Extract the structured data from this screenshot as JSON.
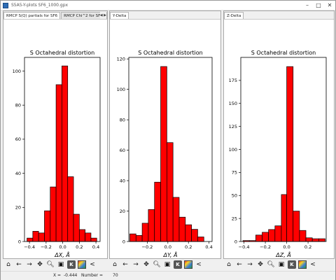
{
  "window": {
    "title": "S5A5-Y-plots SF6_1000.gpx"
  },
  "panes": [
    {
      "tabs": [
        "RMCP S(Q) partials for SF6",
        "RMCP Chi^2 for SF6",
        "Bo"
      ],
      "active_tab": 0,
      "chart_data": {
        "type": "bar",
        "title": "S Octahedral distortion",
        "xlabel": "ΔX, Å",
        "ylabel": "",
        "bin_edges": [
          -0.43,
          -0.36,
          -0.29,
          -0.22,
          -0.15,
          -0.08,
          -0.01,
          0.06,
          0.13,
          0.2,
          0.27,
          0.34,
          0.41
        ],
        "values": [
          2,
          6,
          5,
          18,
          32,
          92,
          103,
          38,
          16,
          7,
          5,
          2
        ],
        "xlim": [
          -0.46,
          0.45
        ],
        "ylim": [
          0,
          108
        ],
        "xticks": [
          -0.4,
          -0.2,
          0.0,
          0.2,
          0.4
        ],
        "xtick_labels": [
          "−0.4",
          "−0.2",
          "0.0",
          "0.2",
          "0.4"
        ],
        "yticks": [
          0,
          20,
          40,
          60,
          80,
          100
        ],
        "ytick_labels": [
          "0",
          "20",
          "40",
          "60",
          "80",
          "100"
        ],
        "bar_color": "#ff0000"
      }
    },
    {
      "tabs": [
        "Y-Delta"
      ],
      "active_tab": 0,
      "chart_data": {
        "type": "bar",
        "title": "S Octahedral distortion",
        "xlabel": "ΔY, Å",
        "ylabel": "",
        "bin_edges": [
          -0.37,
          -0.31,
          -0.25,
          -0.19,
          -0.13,
          -0.07,
          -0.01,
          0.05,
          0.11,
          0.17,
          0.23,
          0.29,
          0.35,
          0.41
        ],
        "values": [
          5,
          4,
          12,
          21,
          39,
          115,
          65,
          29,
          16,
          11,
          8,
          3,
          0
        ],
        "xlim": [
          -0.38,
          0.43
        ],
        "ylim": [
          0,
          121
        ],
        "xticks": [
          -0.2,
          0.0,
          0.2,
          0.4
        ],
        "xtick_labels": [
          "−0.2",
          "0.0",
          "0.2",
          "0.4"
        ],
        "yticks": [
          0,
          20,
          40,
          60,
          80,
          100,
          120
        ],
        "ytick_labels": [
          "0",
          "20",
          "40",
          "60",
          "80",
          "100",
          "120"
        ],
        "bar_color": "#ff0000"
      }
    },
    {
      "tabs": [
        "Z-Delta"
      ],
      "active_tab": 0,
      "chart_data": {
        "type": "bar",
        "title": "S Octahedral distortion",
        "xlabel": "ΔZ, Å",
        "ylabel": "",
        "bin_edges": [
          -0.41,
          -0.35,
          -0.29,
          -0.23,
          -0.17,
          -0.11,
          -0.05,
          0.0,
          0.06,
          0.12,
          0.18,
          0.24,
          0.3,
          0.36
        ],
        "values": [
          1,
          1,
          7,
          10,
          13,
          17,
          51,
          190,
          33,
          12,
          4,
          3,
          3
        ],
        "xlim": [
          -0.43,
          0.37
        ],
        "ylim": [
          0,
          200
        ],
        "xticks": [
          -0.4,
          -0.2,
          0.0,
          0.2
        ],
        "xtick_labels": [
          "−0.4",
          "−0.2",
          "0.0",
          "0.2"
        ],
        "yticks": [
          0,
          25,
          50,
          75,
          100,
          125,
          150,
          175
        ],
        "ytick_labels": [
          "0",
          "25",
          "50",
          "75",
          "100",
          "125",
          "150",
          "175"
        ],
        "bar_color": "#ff0000"
      }
    }
  ],
  "toolbar": {
    "icons": [
      "home-icon",
      "back-arrow-icon",
      "forward-arrow-icon",
      "pan-icon",
      "zoom-icon",
      "save-icon",
      "keyboard-icon",
      "color-icon",
      "less-than-icon"
    ],
    "glyphs": {
      "home": "⌂",
      "back": "←",
      "forward": "→",
      "pan": "✥",
      "zoom": "🔍︎",
      "save": "▣",
      "key": "K",
      "less": "<"
    }
  },
  "status": {
    "x_label": "X =",
    "x_value": "-0.444",
    "number_label": "Number =",
    "number_value": "70"
  }
}
